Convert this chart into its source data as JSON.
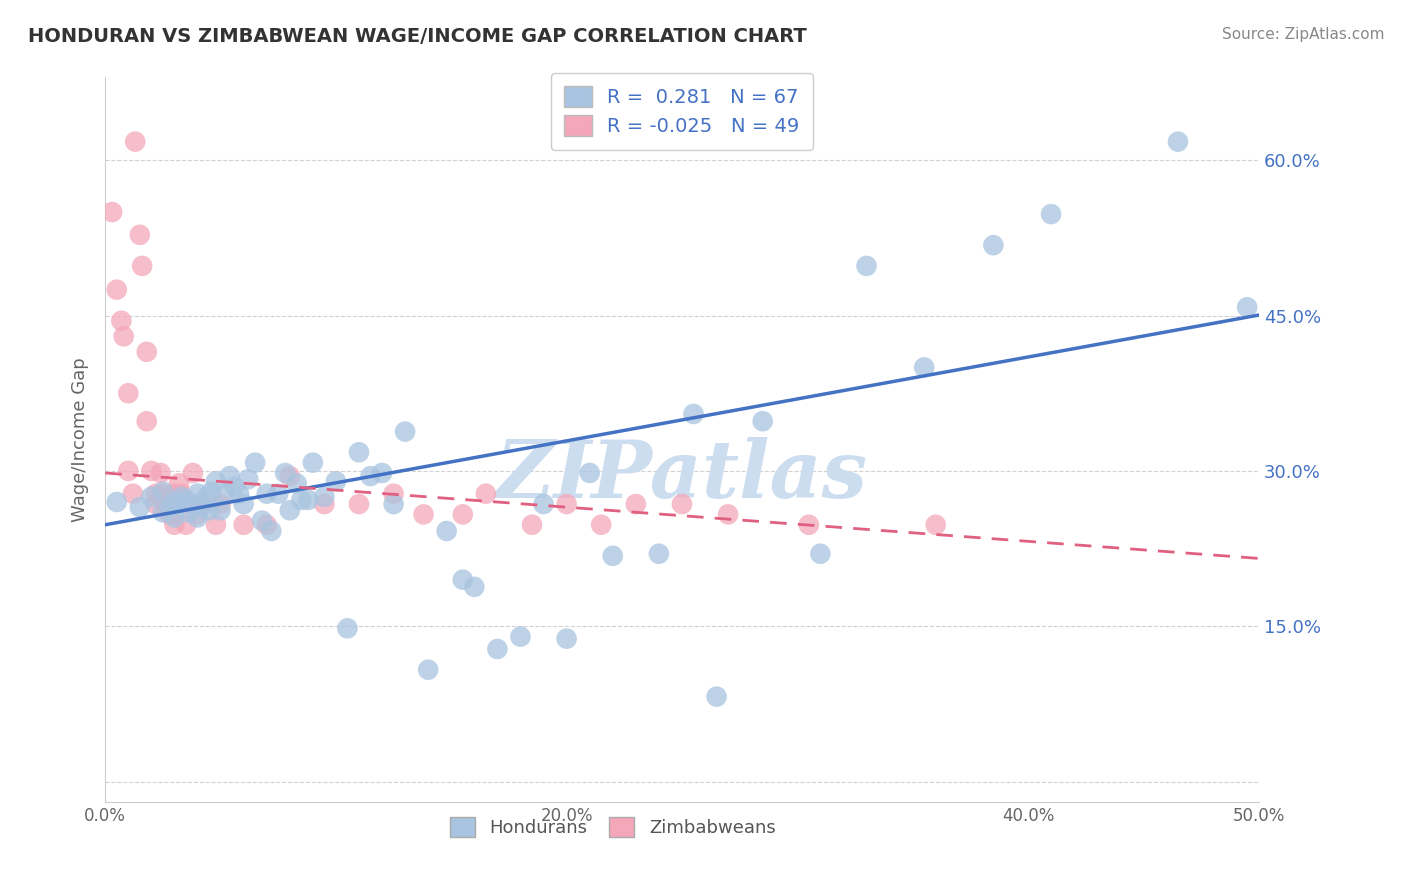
{
  "title": "HONDURAN VS ZIMBABWEAN WAGE/INCOME GAP CORRELATION CHART",
  "source": "Source: ZipAtlas.com",
  "ylabel": "Wage/Income Gap",
  "xlim": [
    0.0,
    0.5
  ],
  "ylim": [
    -0.02,
    0.68
  ],
  "yticks": [
    0.0,
    0.15,
    0.3,
    0.45,
    0.6
  ],
  "ytick_labels": [
    "",
    "15.0%",
    "30.0%",
    "45.0%",
    "60.0%"
  ],
  "xticks": [
    0.0,
    0.1,
    0.2,
    0.3,
    0.4,
    0.5
  ],
  "xtick_labels": [
    "0.0%",
    "",
    "20.0%",
    "",
    "40.0%",
    "50.0%"
  ],
  "honduran_color": "#a8c4e0",
  "zimbabwean_color": "#f4a7b9",
  "trend_honduran_color": "#4472c4",
  "trend_zimbabwean_color": "#e06080",
  "R_honduran": 0.281,
  "N_honduran": 67,
  "R_zimbabwean": -0.025,
  "N_zimbabwean": 49,
  "watermark": "ZIPatlas",
  "watermark_color": "#ccddf0",
  "background_color": "#ffffff",
  "grid_color": "#cccccc",
  "honduran_x": [
    0.005,
    0.015,
    0.02,
    0.025,
    0.025,
    0.028,
    0.03,
    0.03,
    0.032,
    0.033,
    0.035,
    0.036,
    0.038,
    0.04,
    0.04,
    0.042,
    0.044,
    0.045,
    0.046,
    0.048,
    0.05,
    0.052,
    0.054,
    0.056,
    0.058,
    0.06,
    0.062,
    0.065,
    0.068,
    0.07,
    0.072,
    0.075,
    0.078,
    0.08,
    0.083,
    0.085,
    0.088,
    0.09,
    0.095,
    0.1,
    0.105,
    0.11,
    0.115,
    0.12,
    0.125,
    0.13,
    0.14,
    0.148,
    0.155,
    0.16,
    0.17,
    0.18,
    0.19,
    0.2,
    0.21,
    0.22,
    0.24,
    0.255,
    0.265,
    0.285,
    0.31,
    0.33,
    0.355,
    0.385,
    0.41,
    0.465,
    0.495
  ],
  "honduran_y": [
    0.27,
    0.265,
    0.275,
    0.26,
    0.28,
    0.265,
    0.255,
    0.27,
    0.268,
    0.275,
    0.272,
    0.26,
    0.268,
    0.255,
    0.278,
    0.265,
    0.275,
    0.262,
    0.28,
    0.29,
    0.262,
    0.278,
    0.295,
    0.285,
    0.278,
    0.268,
    0.292,
    0.308,
    0.252,
    0.278,
    0.242,
    0.278,
    0.298,
    0.262,
    0.288,
    0.272,
    0.272,
    0.308,
    0.275,
    0.29,
    0.148,
    0.318,
    0.295,
    0.298,
    0.268,
    0.338,
    0.108,
    0.242,
    0.195,
    0.188,
    0.128,
    0.14,
    0.268,
    0.138,
    0.298,
    0.218,
    0.22,
    0.355,
    0.082,
    0.348,
    0.22,
    0.498,
    0.4,
    0.518,
    0.548,
    0.618,
    0.458
  ],
  "zimbabwean_x": [
    0.003,
    0.005,
    0.007,
    0.008,
    0.01,
    0.01,
    0.012,
    0.013,
    0.015,
    0.016,
    0.018,
    0.018,
    0.02,
    0.022,
    0.022,
    0.024,
    0.025,
    0.026,
    0.028,
    0.028,
    0.03,
    0.03,
    0.032,
    0.033,
    0.034,
    0.035,
    0.036,
    0.038,
    0.04,
    0.042,
    0.048,
    0.05,
    0.06,
    0.07,
    0.08,
    0.095,
    0.11,
    0.125,
    0.138,
    0.155,
    0.165,
    0.185,
    0.2,
    0.215,
    0.23,
    0.25,
    0.27,
    0.305,
    0.36
  ],
  "zimbabwean_y": [
    0.55,
    0.475,
    0.445,
    0.43,
    0.375,
    0.3,
    0.278,
    0.618,
    0.528,
    0.498,
    0.415,
    0.348,
    0.3,
    0.278,
    0.268,
    0.298,
    0.278,
    0.268,
    0.268,
    0.258,
    0.248,
    0.278,
    0.288,
    0.278,
    0.268,
    0.248,
    0.268,
    0.298,
    0.258,
    0.268,
    0.248,
    0.268,
    0.248,
    0.248,
    0.295,
    0.268,
    0.268,
    0.278,
    0.258,
    0.258,
    0.278,
    0.248,
    0.268,
    0.248,
    0.268,
    0.268,
    0.258,
    0.248,
    0.248
  ]
}
